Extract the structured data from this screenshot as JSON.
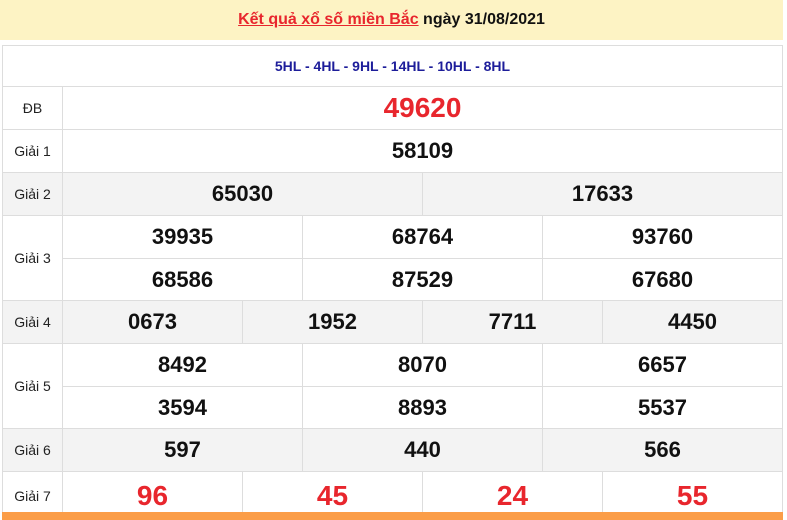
{
  "header": {
    "title_link": "Kết quả xổ số miền Bắc",
    "title_rest": " ngày 31/08/2021"
  },
  "codes": "5HL - 4HL - 9HL - 14HL - 10HL - 8HL",
  "prizes": [
    {
      "label": "ĐB",
      "rows": [
        [
          "49620"
        ]
      ]
    },
    {
      "label": "Giải 1",
      "rows": [
        [
          "58109"
        ]
      ]
    },
    {
      "label": "Giải 2",
      "rows": [
        [
          "65030",
          "17633"
        ]
      ]
    },
    {
      "label": "Giải 3",
      "rows": [
        [
          "39935",
          "68764",
          "93760"
        ],
        [
          "68586",
          "87529",
          "67680"
        ]
      ]
    },
    {
      "label": "Giải 4",
      "rows": [
        [
          "0673",
          "1952",
          "7711",
          "4450"
        ]
      ]
    },
    {
      "label": "Giải 5",
      "rows": [
        [
          "8492",
          "8070",
          "6657"
        ],
        [
          "3594",
          "8893",
          "5537"
        ]
      ]
    },
    {
      "label": "Giải 6",
      "rows": [
        [
          "597",
          "440",
          "566"
        ]
      ]
    },
    {
      "label": "Giải 7",
      "rows": [
        [
          "96",
          "45",
          "24",
          "55"
        ]
      ]
    }
  ],
  "colors": {
    "accent_red": "#e8262d",
    "code_blue": "#1d1d9a",
    "header_bg": "#fdf3c4",
    "footer_orange": "#fb9d48"
  }
}
